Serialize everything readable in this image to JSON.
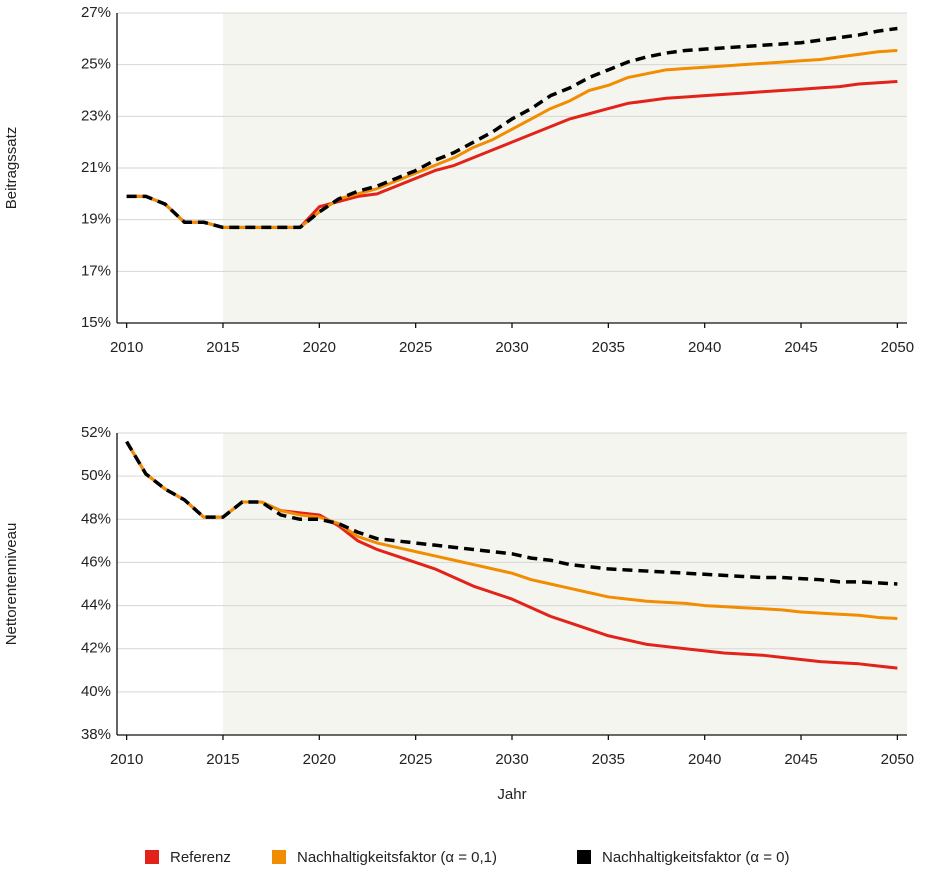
{
  "chart_data": [
    {
      "type": "line",
      "y_label": "Beitragssatz",
      "x": [
        2010,
        2011,
        2012,
        2013,
        2014,
        2015,
        2016,
        2017,
        2018,
        2019,
        2020,
        2021,
        2022,
        2023,
        2024,
        2025,
        2026,
        2027,
        2028,
        2029,
        2030,
        2031,
        2032,
        2033,
        2034,
        2035,
        2036,
        2037,
        2038,
        2039,
        2040,
        2041,
        2042,
        2043,
        2044,
        2045,
        2046,
        2047,
        2048,
        2049,
        2050
      ],
      "xlim": [
        2009.5,
        2050.5
      ],
      "xticks": [
        2010,
        2015,
        2020,
        2025,
        2030,
        2035,
        2040,
        2045,
        2050
      ],
      "ylim": [
        15,
        27
      ],
      "yticks": [
        {
          "value": 15,
          "label": "15%"
        },
        {
          "value": 17,
          "label": "17%"
        },
        {
          "value": 19,
          "label": "19%"
        },
        {
          "value": 21,
          "label": "21%"
        },
        {
          "value": 23,
          "label": "23%"
        },
        {
          "value": 25,
          "label": "25%"
        },
        {
          "value": 27,
          "label": "27%"
        }
      ],
      "grid": true,
      "shade_from": 2015,
      "shade_color": "#f5f5f0",
      "series": [
        {
          "name": "Referenz",
          "color": "#e2231a",
          "dash": false,
          "values": [
            19.9,
            19.9,
            19.6,
            18.9,
            18.9,
            18.7,
            18.7,
            18.7,
            18.7,
            18.7,
            19.5,
            19.7,
            19.9,
            20.0,
            20.3,
            20.6,
            20.9,
            21.1,
            21.4,
            21.7,
            22.0,
            22.3,
            22.6,
            22.9,
            23.1,
            23.3,
            23.5,
            23.6,
            23.7,
            23.75,
            23.8,
            23.85,
            23.9,
            23.95,
            24.0,
            24.05,
            24.1,
            24.15,
            24.25,
            24.3,
            24.35
          ]
        },
        {
          "name": "Nachhaltigkeitsfaktor (α = 0,1)",
          "color": "#f28c00",
          "dash": false,
          "values": [
            19.9,
            19.9,
            19.6,
            18.9,
            18.9,
            18.7,
            18.7,
            18.7,
            18.7,
            18.7,
            19.3,
            19.8,
            20.0,
            20.2,
            20.5,
            20.8,
            21.1,
            21.4,
            21.8,
            22.1,
            22.5,
            22.9,
            23.3,
            23.6,
            24.0,
            24.2,
            24.5,
            24.65,
            24.8,
            24.85,
            24.9,
            24.95,
            25.0,
            25.05,
            25.1,
            25.15,
            25.2,
            25.3,
            25.4,
            25.5,
            25.55
          ]
        },
        {
          "name": "Nachhaltigkeitsfaktor (α = 0)",
          "color": "#000000",
          "dash": true,
          "values": [
            19.9,
            19.9,
            19.6,
            18.9,
            18.9,
            18.7,
            18.7,
            18.7,
            18.7,
            18.7,
            19.3,
            19.8,
            20.1,
            20.3,
            20.6,
            20.9,
            21.3,
            21.6,
            22.0,
            22.4,
            22.9,
            23.3,
            23.8,
            24.1,
            24.5,
            24.8,
            25.1,
            25.3,
            25.45,
            25.55,
            25.6,
            25.65,
            25.7,
            25.75,
            25.8,
            25.85,
            25.95,
            26.05,
            26.15,
            26.3,
            26.4
          ]
        }
      ]
    },
    {
      "type": "line",
      "y_label": "Nettorentenniveau",
      "x_label": "Jahr",
      "x": [
        2010,
        2011,
        2012,
        2013,
        2014,
        2015,
        2016,
        2017,
        2018,
        2019,
        2020,
        2021,
        2022,
        2023,
        2024,
        2025,
        2026,
        2027,
        2028,
        2029,
        2030,
        2031,
        2032,
        2033,
        2034,
        2035,
        2036,
        2037,
        2038,
        2039,
        2040,
        2041,
        2042,
        2043,
        2044,
        2045,
        2046,
        2047,
        2048,
        2049,
        2050
      ],
      "xlim": [
        2009.5,
        2050.5
      ],
      "xticks": [
        2010,
        2015,
        2020,
        2025,
        2030,
        2035,
        2040,
        2045,
        2050
      ],
      "ylim": [
        38,
        52
      ],
      "yticks": [
        {
          "value": 38,
          "label": "38%"
        },
        {
          "value": 40,
          "label": "40%"
        },
        {
          "value": 42,
          "label": "42%"
        },
        {
          "value": 44,
          "label": "44%"
        },
        {
          "value": 46,
          "label": "46%"
        },
        {
          "value": 48,
          "label": "48%"
        },
        {
          "value": 50,
          "label": "50%"
        },
        {
          "value": 52,
          "label": "52%"
        }
      ],
      "grid": true,
      "shade_from": 2015,
      "shade_color": "#f5f5f0",
      "series": [
        {
          "color": "#e2231a",
          "dash": false,
          "values": [
            51.6,
            50.1,
            49.4,
            48.9,
            48.1,
            48.1,
            48.8,
            48.8,
            48.4,
            48.3,
            48.2,
            47.7,
            47.0,
            46.6,
            46.3,
            46.0,
            45.7,
            45.3,
            44.9,
            44.6,
            44.3,
            43.9,
            43.5,
            43.2,
            42.9,
            42.6,
            42.4,
            42.2,
            42.1,
            42.0,
            41.9,
            41.8,
            41.75,
            41.7,
            41.6,
            41.5,
            41.4,
            41.35,
            41.3,
            41.2,
            41.1
          ]
        },
        {
          "color": "#f28c00",
          "dash": false,
          "values": [
            51.6,
            50.1,
            49.4,
            48.9,
            48.1,
            48.1,
            48.8,
            48.8,
            48.4,
            48.2,
            48.1,
            47.8,
            47.2,
            46.9,
            46.7,
            46.5,
            46.3,
            46.1,
            45.9,
            45.7,
            45.5,
            45.2,
            45.0,
            44.8,
            44.6,
            44.4,
            44.3,
            44.2,
            44.15,
            44.1,
            44.0,
            43.95,
            43.9,
            43.85,
            43.8,
            43.7,
            43.65,
            43.6,
            43.55,
            43.45,
            43.4
          ]
        },
        {
          "color": "#000000",
          "dash": true,
          "values": [
            51.6,
            50.1,
            49.4,
            48.9,
            48.1,
            48.1,
            48.8,
            48.8,
            48.2,
            48.0,
            48.0,
            47.8,
            47.4,
            47.1,
            47.0,
            46.9,
            46.8,
            46.7,
            46.6,
            46.5,
            46.4,
            46.2,
            46.1,
            45.9,
            45.8,
            45.7,
            45.65,
            45.6,
            45.55,
            45.5,
            45.45,
            45.4,
            45.35,
            45.3,
            45.3,
            45.25,
            45.2,
            45.1,
            45.1,
            45.05,
            45.0
          ]
        }
      ]
    }
  ]
}
